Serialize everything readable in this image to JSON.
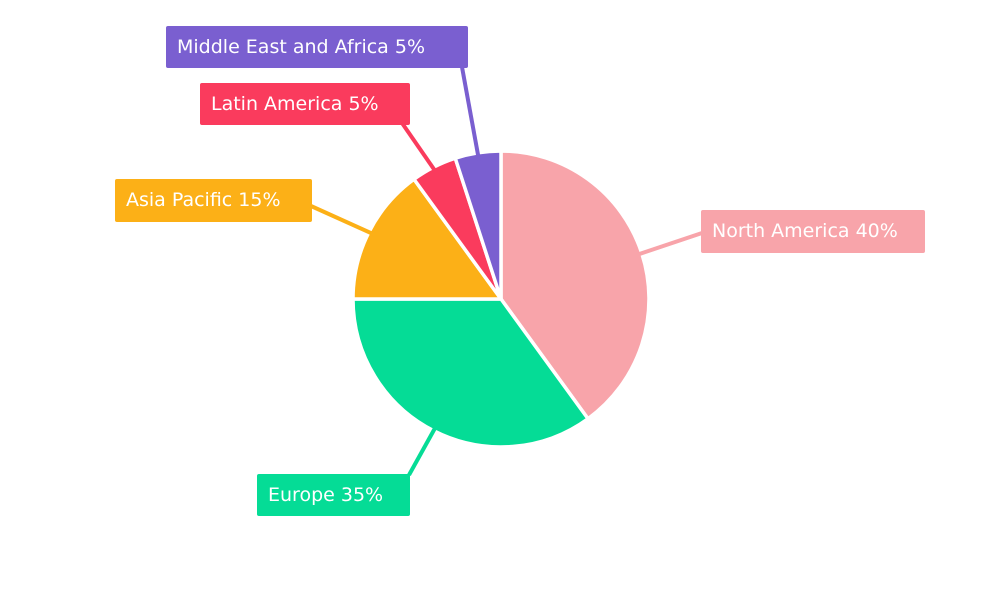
{
  "page": {
    "background_color": "#ffffff"
  },
  "chart_data": {
    "type": "pie",
    "title": "",
    "legend": "none",
    "start_angle_deg": 0,
    "direction": "clockwise",
    "categories": [
      "North America",
      "Europe",
      "Asia Pacific",
      "Latin America",
      "Middle East and Africa"
    ],
    "values": [
      40,
      35,
      15,
      5,
      5
    ],
    "unit": "%",
    "label_text_color": "#ffffff",
    "separator_color": "#ffffff",
    "slices": [
      {
        "label": "North America",
        "value": 40,
        "display": "North America 40%",
        "color": "#F8A4AA"
      },
      {
        "label": "Europe",
        "value": 35,
        "display": "Europe 35%",
        "color": "#05DC96"
      },
      {
        "label": "Asia Pacific",
        "value": 15,
        "display": "Asia Pacific 15%",
        "color": "#FCB017"
      },
      {
        "label": "Latin America",
        "value": 5,
        "display": "Latin America 5%",
        "color": "#FA3B5D"
      },
      {
        "label": "Middle East and Africa",
        "value": 5,
        "display": "Middle East and Africa 5%",
        "color": "#7A5FD0"
      }
    ]
  }
}
